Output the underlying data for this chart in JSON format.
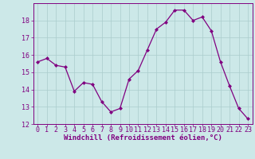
{
  "x": [
    0,
    1,
    2,
    3,
    4,
    5,
    6,
    7,
    8,
    9,
    10,
    11,
    12,
    13,
    14,
    15,
    16,
    17,
    18,
    19,
    20,
    21,
    22,
    23
  ],
  "y": [
    15.6,
    15.8,
    15.4,
    15.3,
    13.9,
    14.4,
    14.3,
    13.3,
    12.7,
    12.9,
    14.6,
    15.1,
    16.3,
    17.5,
    17.9,
    18.6,
    18.6,
    18.0,
    18.2,
    17.4,
    15.6,
    14.2,
    12.9,
    12.3
  ],
  "line_color": "#800080",
  "marker_color": "#800080",
  "bg_color": "#cce8e8",
  "grid_color": "#aacccc",
  "xlabel": "Windchill (Refroidissement éolien,°C)",
  "ylim": [
    12,
    19
  ],
  "xlim_min": -0.5,
  "xlim_max": 23.5,
  "yticks": [
    12,
    13,
    14,
    15,
    16,
    17,
    18
  ],
  "xticks": [
    0,
    1,
    2,
    3,
    4,
    5,
    6,
    7,
    8,
    9,
    10,
    11,
    12,
    13,
    14,
    15,
    16,
    17,
    18,
    19,
    20,
    21,
    22,
    23
  ],
  "axis_color": "#800080",
  "tick_color": "#800080",
  "label_fontsize": 6.5,
  "tick_fontsize": 6.0
}
